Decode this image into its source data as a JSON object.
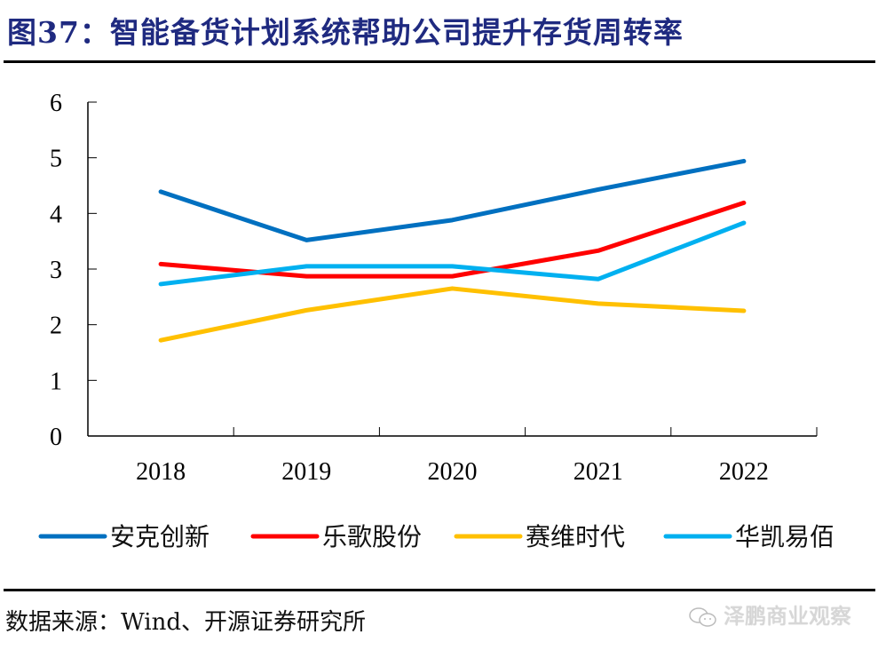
{
  "header": {
    "title": "图37：智能备货计划系统帮助公司提升存货周转率"
  },
  "footer": {
    "source": "数据来源：Wind、开源证券研究所",
    "watermark": "泽鹏商业观察"
  },
  "colors": {
    "title": "#1f2a80",
    "axis": "#000000"
  },
  "chart_data": {
    "type": "line",
    "title": "智能备货计划系统帮助公司提升存货周转率",
    "xlabel": "",
    "ylabel": "",
    "categories": [
      "2018",
      "2019",
      "2020",
      "2021",
      "2022"
    ],
    "ylim": [
      0,
      6
    ],
    "yticks": [
      "0",
      "1",
      "2",
      "3",
      "4",
      "5",
      "6"
    ],
    "grid": false,
    "legend_position": "bottom",
    "series": [
      {
        "name": "安克创新",
        "color": "#0070c0",
        "values": [
          4.39,
          3.52,
          3.88,
          4.43,
          4.94
        ]
      },
      {
        "name": "乐歌股份",
        "color": "#ff0000",
        "values": [
          3.09,
          2.87,
          2.87,
          3.33,
          4.19
        ]
      },
      {
        "name": "赛维时代",
        "color": "#ffc000",
        "values": [
          1.72,
          2.26,
          2.65,
          2.38,
          2.25
        ]
      },
      {
        "name": "华凯易佰",
        "color": "#00b0f0",
        "values": [
          2.73,
          3.05,
          3.05,
          2.82,
          3.83
        ]
      }
    ]
  }
}
